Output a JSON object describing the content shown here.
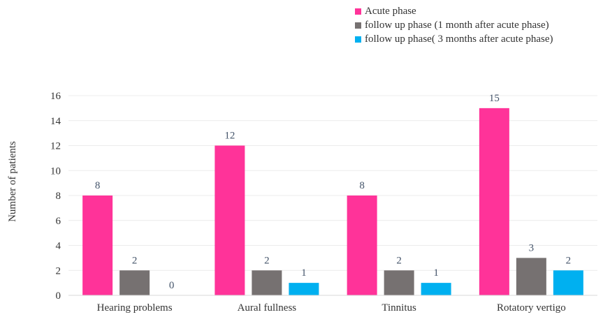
{
  "chart_data": {
    "type": "bar",
    "title": "",
    "xlabel": "",
    "ylabel": "Number of patients",
    "ylim": [
      0,
      16
    ],
    "yticks": [
      0,
      2,
      4,
      6,
      8,
      10,
      12,
      14,
      16
    ],
    "grid": true,
    "legend_position": "top-right",
    "categories": [
      "Hearing problems",
      "Aural fullness",
      "Tinnitus",
      "Rotatory vertigo"
    ],
    "series": [
      {
        "name": "Acute phase",
        "color": "#FF3399",
        "values": [
          8,
          12,
          8,
          15
        ]
      },
      {
        "name": "follow up phase (1 month after acute phase)",
        "color": "#767171",
        "values": [
          2,
          2,
          2,
          3
        ]
      },
      {
        "name": "follow up phase( 3 months after acute phase)",
        "color": "#00B0F0",
        "values": [
          0,
          1,
          1,
          2
        ]
      }
    ]
  }
}
